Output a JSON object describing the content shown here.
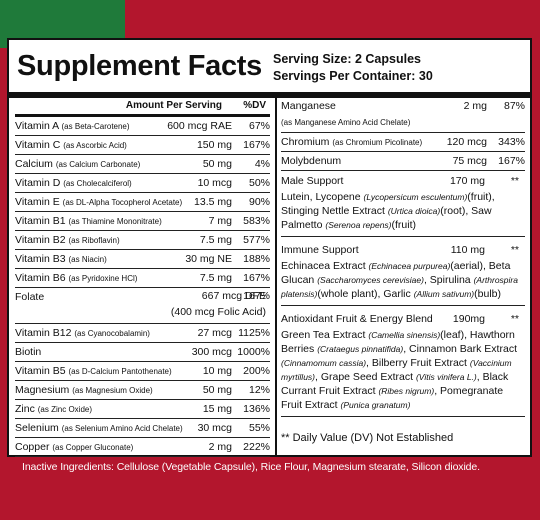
{
  "title": "Supplement Facts",
  "serving_size": "Serving Size: 2 Capsules",
  "servings_per_container": "Servings Per Container: 30",
  "table_header": {
    "amount": "Amount Per Serving",
    "dv": "%DV"
  },
  "left_rows": [
    {
      "name": "Vitamin A",
      "source": "(as Beta-Carotene)",
      "amount": "600 mcg RAE",
      "dv": "67%"
    },
    {
      "name": "Vitamin C",
      "source": "(as Ascorbic Acid)",
      "amount": "150 mg",
      "dv": "167%"
    },
    {
      "name": "Calcium",
      "source": "(as Calcium Carbonate)",
      "amount": "50 mg",
      "dv": "4%"
    },
    {
      "name": "Vitamin D",
      "source": "(as Cholecalciferol)",
      "amount": "10 mcg",
      "dv": "50%"
    },
    {
      "name": "Vitamin E",
      "source": "(as DL-Alpha Tocopherol Acetate)",
      "amount": "13.5 mg",
      "dv": "90%"
    },
    {
      "name": "Vitamin B1",
      "source": "(as Thiamine Mononitrate)",
      "amount": "7 mg",
      "dv": "583%"
    },
    {
      "name": "Vitamin B2",
      "source": "(as Riboflavin)",
      "amount": "7.5 mg",
      "dv": "577%"
    },
    {
      "name": "Vitamin B3",
      "source": "(as Niacin)",
      "amount": "30 mg NE",
      "dv": "188%"
    },
    {
      "name": "Vitamin B6",
      "source": "(as Pyridoxine HCl)",
      "amount": "7.5 mg",
      "dv": "167%"
    },
    {
      "name": "Folate",
      "amount": "667 mcg DFE",
      "amount_note": "(400 mcg Folic Acid)",
      "dv": "167%"
    },
    {
      "name": "Vitamin B12",
      "source": "(as Cyanocobalamin)",
      "amount": "27 mcg",
      "dv": "1125%"
    },
    {
      "name": "Biotin",
      "amount": "300 mcg",
      "dv": "1000%"
    },
    {
      "name": "Vitamin B5",
      "source": "(as D-Calcium Pantothenate)",
      "amount": "10 mg",
      "dv": "200%"
    },
    {
      "name": "Magnesium",
      "source": "(as Magnesium Oxide)",
      "amount": "50 mg",
      "dv": "12%"
    },
    {
      "name": "Zinc",
      "source": "(as Zinc Oxide)",
      "amount": "15 mg",
      "dv": "136%"
    },
    {
      "name": "Selenium",
      "source": "(as Selenium Amino Acid Chelate)",
      "amount": "30 mcg",
      "dv": "55%"
    },
    {
      "name": "Copper",
      "source": "(as Copper Gluconate)",
      "amount": "2 mg",
      "dv": "222%"
    }
  ],
  "right_rows": [
    {
      "name": "Manganese",
      "source": "(as Manganese Amino Acid Chelate)",
      "amount": "2 mg",
      "dv": "87%"
    },
    {
      "name": "Chromium",
      "source": "(as Chromium Picolinate)",
      "amount": "120 mcg",
      "dv": "343%"
    },
    {
      "name": "Molybdenum",
      "amount": "75 mcg",
      "dv": "167%"
    }
  ],
  "blends": [
    {
      "name": "Male Support",
      "amount": "170 mg",
      "dv": "**",
      "description": [
        {
          "text": "Lutein, Lycopene "
        },
        {
          "text": "(Lycopersicum esculentum)",
          "italic": true
        },
        {
          "text": "(fruit), Stinging Nettle Extract "
        },
        {
          "text": "(Urtica dioica)",
          "italic": true
        },
        {
          "text": "(root), Saw Palmetto "
        },
        {
          "text": "(Serenoa repens)",
          "italic": true
        },
        {
          "text": "(fruit)"
        }
      ]
    },
    {
      "name": "Immune Support",
      "amount": "110 mg",
      "dv": "**",
      "description": [
        {
          "text": "Echinacea Extract "
        },
        {
          "text": "(Echinacea purpurea)",
          "italic": true
        },
        {
          "text": "(aerial), Beta Glucan "
        },
        {
          "text": "(Saccharomyces cerevisiae)",
          "italic": true
        },
        {
          "text": ", Spirulina "
        },
        {
          "text": "(Arthrospira platensis)",
          "italic": true
        },
        {
          "text": "(whole plant), Garlic "
        },
        {
          "text": "(Allium sativum)",
          "italic": true
        },
        {
          "text": "(bulb)"
        }
      ]
    },
    {
      "name": "Antioxidant Fruit & Energy Blend",
      "amount": "190mg",
      "dv": "**",
      "description": [
        {
          "text": "Green Tea Extract "
        },
        {
          "text": "(Camellia sinensis)",
          "italic": true
        },
        {
          "text": "(leaf), Hawthorn Berries "
        },
        {
          "text": "(Crataegus pinnatifida)",
          "italic": true
        },
        {
          "text": ", Cinnamon Bark Extract "
        },
        {
          "text": "(Cinnamomum cassia)",
          "italic": true
        },
        {
          "text": ", Bilberry Fruit Extract "
        },
        {
          "text": "(Vaccinium myrtillus)",
          "italic": true
        },
        {
          "text": ", Grape Seed Extract "
        },
        {
          "text": "(Vitis vinifera L.)",
          "italic": true
        },
        {
          "text": ", Black Currant Fruit Extract "
        },
        {
          "text": "(Ribes nigrum)",
          "italic": true
        },
        {
          "text": ", Pomegranate Fruit Extract "
        },
        {
          "text": "(Punica granatum)",
          "italic": true
        }
      ]
    }
  ],
  "footnote": "** Daily Value (DV) Not Established",
  "inactive_ingredients": "Inactive Ingredients: Cellulose (Vegetable Capsule), Rice Flour, Magnesium stearate, Silicon dioxide."
}
